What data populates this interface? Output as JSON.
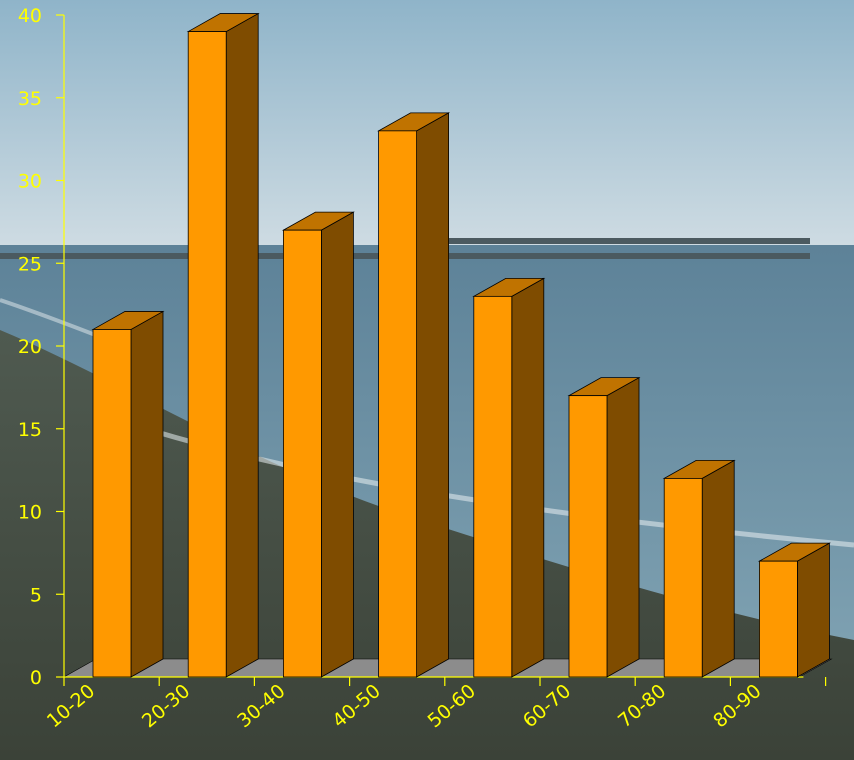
{
  "chart_data": {
    "type": "bar",
    "style": "3d",
    "title": "",
    "xlabel": "",
    "ylabel": "",
    "categories": [
      "10-20",
      "20-30",
      "30-40",
      "40-50",
      "50-60",
      "60-70",
      "70-80",
      "80-90"
    ],
    "values": [
      21,
      39,
      27,
      33,
      23,
      17,
      12,
      7
    ],
    "ylim": [
      0,
      40
    ],
    "yticks": [
      0,
      5,
      10,
      15,
      20,
      25,
      30,
      35,
      40
    ],
    "grid": false,
    "legend": "none"
  },
  "colors": {
    "bar_front": "#ff9900",
    "bar_side": "#7f4c00",
    "bar_top": "#c07300",
    "floor": "#8c8c8c",
    "axis": "#ffff00",
    "labels": "#ffff00",
    "outline": "#000000"
  },
  "background": {
    "description_icon": "beach-photo-background"
  }
}
